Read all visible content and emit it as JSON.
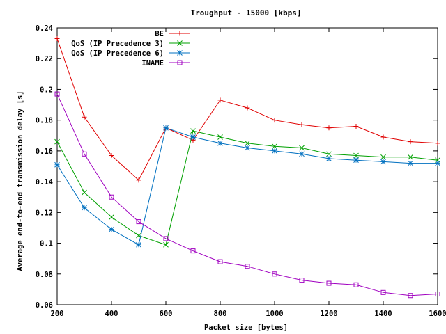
{
  "chart_data": {
    "type": "line",
    "title": "Troughput - 15000 [kbps]",
    "xlabel": "Packet size [bytes]",
    "ylabel": "Average end-to-end transmission delay [s]",
    "xlim": [
      200,
      1600
    ],
    "ylim": [
      0.06,
      0.24
    ],
    "xticks": [
      200,
      400,
      600,
      800,
      1000,
      1200,
      1400,
      1600
    ],
    "yticks": [
      0.06,
      0.08,
      0.1,
      0.12,
      0.14,
      0.16,
      0.18,
      0.2,
      0.22,
      0.24
    ],
    "grid": false,
    "legend_position": "top-right",
    "series": [
      {
        "name": "BE",
        "color": "#e00000",
        "marker": "plus",
        "x": [
          200,
          300,
          400,
          500,
          600,
          700,
          800,
          900,
          1000,
          1100,
          1200,
          1300,
          1400,
          1500,
          1600
        ],
        "y": [
          0.233,
          0.182,
          0.157,
          0.141,
          0.175,
          0.167,
          0.193,
          0.188,
          0.18,
          0.177,
          0.175,
          0.176,
          0.169,
          0.166,
          0.165
        ]
      },
      {
        "name": "QoS (IP Precedence 3)",
        "color": "#00a000",
        "marker": "cross",
        "x": [
          200,
          300,
          400,
          500,
          600,
          700,
          800,
          900,
          1000,
          1100,
          1200,
          1300,
          1400,
          1500,
          1600
        ],
        "y": [
          0.166,
          0.133,
          0.117,
          0.105,
          0.099,
          0.173,
          0.169,
          0.165,
          0.163,
          0.162,
          0.158,
          0.157,
          0.156,
          0.156,
          0.154
        ]
      },
      {
        "name": "QoS (IP Precedence 6)",
        "color": "#0070c0",
        "marker": "star",
        "x": [
          200,
          300,
          400,
          500,
          600,
          700,
          800,
          900,
          1000,
          1100,
          1200,
          1300,
          1400,
          1500,
          1600
        ],
        "y": [
          0.151,
          0.123,
          0.109,
          0.099,
          0.175,
          0.169,
          0.165,
          0.162,
          0.16,
          0.158,
          0.155,
          0.154,
          0.153,
          0.152,
          0.152
        ]
      },
      {
        "name": "INAME",
        "color": "#a000c0",
        "marker": "square",
        "x": [
          200,
          300,
          400,
          500,
          600,
          700,
          800,
          900,
          1000,
          1100,
          1200,
          1300,
          1400,
          1500,
          1600
        ],
        "y": [
          0.197,
          0.158,
          0.13,
          0.114,
          0.103,
          0.095,
          0.088,
          0.085,
          0.08,
          0.076,
          0.074,
          0.073,
          0.068,
          0.066,
          0.067
        ]
      }
    ]
  }
}
